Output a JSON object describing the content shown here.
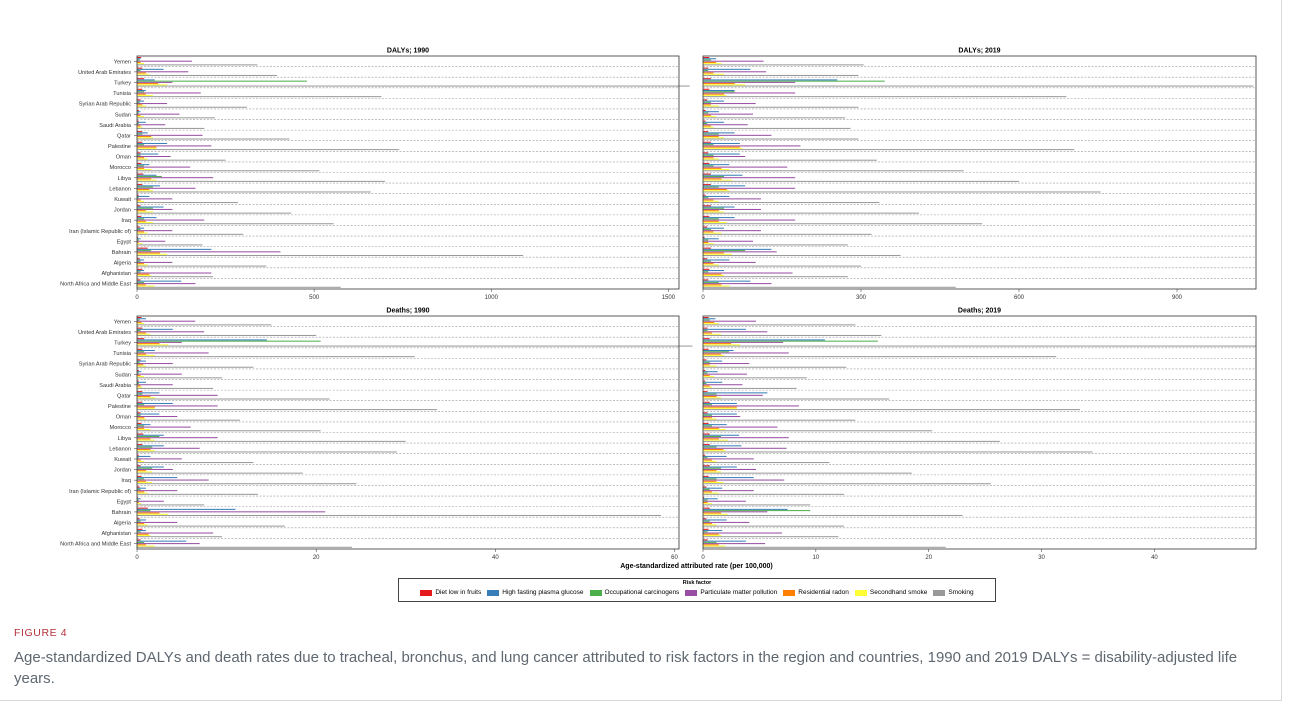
{
  "figure": {
    "label": "FIGURE 4",
    "caption": "Age-standardized DALYs and death rates due to tracheal, bronchus, and lung cancer attributed to risk factors in the region and countries, 1990 and 2019 DALYs = disability-adjusted life years."
  },
  "legend": {
    "title": "Risk factor",
    "placement": "bottom",
    "items": [
      {
        "name": "Diet low in fruits",
        "color": "#e41a1c"
      },
      {
        "name": "High fasting plasma glucose",
        "color": "#377eb8"
      },
      {
        "name": "Occupational carcinogens",
        "color": "#4daf4a"
      },
      {
        "name": "Particulate matter pollution",
        "color": "#984ea3"
      },
      {
        "name": "Residential radon",
        "color": "#ff7f00"
      },
      {
        "name": "Secondhand smoke",
        "color": "#ffff33"
      },
      {
        "name": "Smoking",
        "color": "#999999"
      }
    ]
  },
  "chart_data": {
    "type": "bar",
    "orientation": "horizontal",
    "xlabel": "Age-standardized attributed rate (per 100,000)",
    "categories": [
      "Yemen",
      "United Arab Emirates",
      "Turkey",
      "Tunisia",
      "Syrian Arab Republic",
      "Sudan",
      "Saudi Arabia",
      "Qatar",
      "Palestine",
      "Oman",
      "Morocco",
      "Libya",
      "Lebanon",
      "Kuwait",
      "Jordan",
      "Iraq",
      "Iran (Islamic Republic of)",
      "Egypt",
      "Bahrain",
      "Algeria",
      "Afghanistan",
      "North Africa and Middle East"
    ],
    "series_order": [
      "Diet low in fruits",
      "High fasting plasma glucose",
      "Occupational carcinogens",
      "Particulate matter pollution",
      "Residential radon",
      "Secondhand smoke",
      "Smoking"
    ],
    "panels": [
      {
        "title": "DALYs; 1990",
        "xlim": [
          0,
          1530
        ],
        "xticks": [
          0,
          500,
          1000,
          1500
        ],
        "values": [
          [
            12,
            10,
            8,
            155,
            10,
            20,
            340
          ],
          [
            15,
            75,
            10,
            145,
            25,
            35,
            395
          ],
          [
            20,
            50,
            480,
            100,
            60,
            85,
            1560
          ],
          [
            15,
            25,
            20,
            180,
            25,
            45,
            690
          ],
          [
            10,
            20,
            8,
            85,
            15,
            25,
            310
          ],
          [
            5,
            10,
            5,
            120,
            10,
            20,
            220
          ],
          [
            5,
            25,
            5,
            80,
            10,
            15,
            190
          ],
          [
            15,
            30,
            15,
            185,
            40,
            45,
            430
          ],
          [
            15,
            85,
            20,
            210,
            55,
            55,
            740
          ],
          [
            10,
            60,
            10,
            95,
            20,
            30,
            250
          ],
          [
            12,
            35,
            20,
            150,
            20,
            40,
            515
          ],
          [
            18,
            55,
            70,
            215,
            40,
            55,
            700
          ],
          [
            15,
            65,
            45,
            165,
            35,
            45,
            660
          ],
          [
            5,
            35,
            5,
            100,
            10,
            20,
            285
          ],
          [
            10,
            75,
            45,
            100,
            25,
            45,
            435
          ],
          [
            12,
            55,
            20,
            190,
            25,
            45,
            555
          ],
          [
            8,
            20,
            10,
            100,
            20,
            30,
            300
          ],
          [
            3,
            10,
            5,
            80,
            5,
            15,
            185
          ],
          [
            30,
            210,
            40,
            405,
            65,
            85,
            1090
          ],
          [
            8,
            20,
            10,
            100,
            20,
            30,
            365
          ],
          [
            15,
            20,
            10,
            210,
            35,
            40,
            215
          ],
          [
            10,
            125,
            20,
            165,
            25,
            50,
            575
          ]
        ]
      },
      {
        "title": "DALYs; 2019",
        "xlim": [
          0,
          1050
        ],
        "xticks": [
          0,
          300,
          600,
          900
        ],
        "values": [
          [
            12,
            25,
            15,
            115,
            25,
            35,
            305
          ],
          [
            10,
            90,
            10,
            120,
            20,
            40,
            295
          ],
          [
            15,
            255,
            345,
            175,
            60,
            80,
            1045
          ],
          [
            12,
            60,
            60,
            175,
            40,
            45,
            690
          ],
          [
            8,
            40,
            15,
            100,
            15,
            30,
            295
          ],
          [
            5,
            30,
            10,
            95,
            15,
            25,
            270
          ],
          [
            5,
            40,
            8,
            85,
            15,
            20,
            280
          ],
          [
            10,
            60,
            30,
            130,
            30,
            40,
            295
          ],
          [
            15,
            70,
            20,
            185,
            70,
            75,
            705
          ],
          [
            10,
            70,
            20,
            80,
            20,
            30,
            330
          ],
          [
            12,
            50,
            20,
            160,
            35,
            50,
            495
          ],
          [
            15,
            75,
            40,
            175,
            35,
            55,
            600
          ],
          [
            15,
            80,
            30,
            175,
            45,
            50,
            755
          ],
          [
            5,
            50,
            10,
            110,
            20,
            30,
            335
          ],
          [
            15,
            60,
            40,
            110,
            30,
            40,
            410
          ],
          [
            12,
            60,
            30,
            175,
            30,
            45,
            530
          ],
          [
            8,
            40,
            15,
            110,
            20,
            35,
            320
          ],
          [
            3,
            30,
            10,
            95,
            10,
            20,
            275
          ],
          [
            15,
            130,
            80,
            140,
            40,
            55,
            375
          ],
          [
            8,
            50,
            15,
            100,
            20,
            30,
            300
          ],
          [
            12,
            40,
            10,
            170,
            35,
            40,
            275
          ],
          [
            10,
            90,
            30,
            130,
            35,
            50,
            480
          ]
        ]
      },
      {
        "title": "Deaths; 1990",
        "xlim": [
          0,
          60.5
        ],
        "xticks": [
          0,
          20,
          40,
          60
        ],
        "values": [
          [
            0.5,
            1,
            0.3,
            6.5,
            0.5,
            0.8,
            15
          ],
          [
            0.6,
            4,
            0.4,
            7.5,
            1,
            1.5,
            20
          ],
          [
            0.8,
            14.5,
            20.5,
            5,
            2.5,
            3.5,
            62
          ],
          [
            0.6,
            2,
            0.8,
            8,
            1,
            2,
            31
          ],
          [
            0.4,
            1,
            0.3,
            4,
            0.7,
            1,
            13
          ],
          [
            0.2,
            0.5,
            0.2,
            5,
            0.4,
            0.8,
            9.5
          ],
          [
            0.2,
            1,
            0.2,
            4,
            0.4,
            0.6,
            8.5
          ],
          [
            0.6,
            2.5,
            0.6,
            9,
            1.5,
            2,
            21.5
          ],
          [
            0.6,
            4,
            0.8,
            9,
            2,
            2,
            33.5
          ],
          [
            0.4,
            2.5,
            0.4,
            4.5,
            0.8,
            1,
            11.5
          ],
          [
            0.5,
            1.5,
            0.8,
            6,
            0.8,
            1.5,
            20.5
          ],
          [
            0.7,
            3,
            2.5,
            9,
            1.5,
            2,
            30
          ],
          [
            0.6,
            3,
            1.7,
            7,
            1.5,
            2,
            29
          ],
          [
            0.2,
            1.5,
            0.2,
            5,
            0.4,
            0.8,
            13
          ],
          [
            0.4,
            3,
            1.7,
            4,
            1,
            1.7,
            18.5
          ],
          [
            0.5,
            4.5,
            0.8,
            8,
            1,
            1.7,
            24.5
          ],
          [
            0.3,
            1,
            0.4,
            4.5,
            0.8,
            1.2,
            13.5
          ],
          [
            0.1,
            0.4,
            0.2,
            3,
            0.2,
            0.5,
            7.5
          ],
          [
            1.2,
            11,
            1.5,
            21,
            2.5,
            3.5,
            58.5
          ],
          [
            0.3,
            1,
            0.4,
            4.5,
            0.8,
            1.2,
            16.5
          ],
          [
            0.6,
            1,
            0.4,
            8.5,
            1.3,
            1.5,
            9.5
          ],
          [
            0.4,
            5.5,
            0.8,
            7,
            1,
            2,
            24
          ]
        ]
      },
      {
        "title": "Deaths; 2019",
        "xlim": [
          0,
          49
        ],
        "xticks": [
          0,
          10,
          20,
          30,
          40
        ],
        "values": [
          [
            0.5,
            1.1,
            0.6,
            4.7,
            1,
            1.4,
            13.5
          ],
          [
            0.4,
            3.8,
            0.4,
            5.7,
            0.8,
            1.6,
            15.8
          ],
          [
            0.6,
            10.8,
            15.5,
            7.1,
            2.5,
            3.3,
            49
          ],
          [
            0.5,
            2.7,
            2.3,
            7.6,
            1.6,
            1.9,
            31.3
          ],
          [
            0.3,
            1.7,
            0.6,
            4.1,
            0.6,
            1.2,
            12.7
          ],
          [
            0.2,
            1.3,
            0.4,
            3.9,
            0.6,
            1,
            9.2
          ],
          [
            0.2,
            1.7,
            0.3,
            3.5,
            0.6,
            0.8,
            8.3
          ],
          [
            0.4,
            5.7,
            1.2,
            5.3,
            1.2,
            1.6,
            16.5
          ],
          [
            0.6,
            3,
            0.8,
            8.5,
            3,
            3,
            33.4
          ],
          [
            0.4,
            3,
            0.8,
            3.3,
            0.8,
            1.2,
            13.5
          ],
          [
            0.5,
            2.1,
            0.8,
            6.6,
            1.4,
            2,
            20.3
          ],
          [
            0.6,
            3.2,
            1.6,
            7.6,
            1.4,
            2.2,
            26.3
          ],
          [
            0.6,
            3.4,
            1.2,
            7.4,
            1.8,
            2,
            34.5
          ],
          [
            0.2,
            2.1,
            0.4,
            4.5,
            0.8,
            1.2,
            11.2
          ],
          [
            0.6,
            3,
            1.6,
            4.7,
            1.2,
            1.6,
            18.5
          ],
          [
            0.5,
            4.5,
            1.2,
            7.2,
            1.2,
            1.8,
            25.5
          ],
          [
            0.3,
            1.7,
            0.6,
            4.5,
            0.8,
            1.4,
            12.5
          ],
          [
            0.1,
            1.3,
            0.4,
            3.8,
            0.4,
            0.8,
            9.5
          ],
          [
            0.6,
            7.5,
            9.5,
            5.7,
            1.6,
            2.2,
            23
          ],
          [
            0.3,
            2.1,
            0.6,
            4.1,
            0.8,
            1.2,
            12.5
          ],
          [
            0.5,
            1.7,
            0.4,
            7,
            1.4,
            1.6,
            12
          ],
          [
            0.4,
            3.8,
            1.2,
            5.5,
            1.4,
            2,
            21.5
          ]
        ]
      }
    ]
  }
}
